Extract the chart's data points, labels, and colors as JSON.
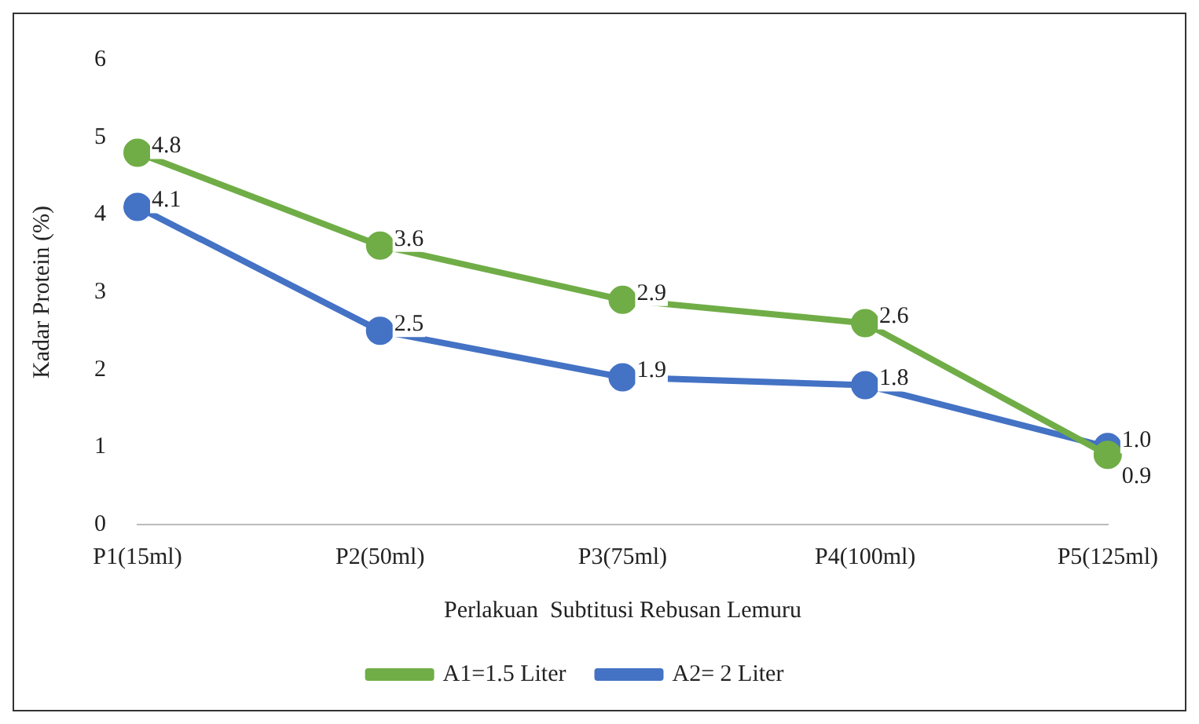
{
  "chart_data": {
    "type": "line",
    "xlabel": "Perlakuan  Subtitusi Rebusan Lemuru",
    "ylabel": "Kadar Protein (%)",
    "categories": [
      "P1(15ml)",
      "P2(50ml)",
      "P3(75ml)",
      "P4(100ml)",
      "P5(125ml)"
    ],
    "series": [
      {
        "name": "A1=1.5 Liter",
        "color": "#70ad47",
        "values": [
          4.8,
          3.6,
          2.9,
          2.6,
          0.9
        ],
        "value_labels": [
          "4.8",
          "3.6",
          "2.9",
          "2.6",
          "0.9"
        ]
      },
      {
        "name": "A2= 2 Liter",
        "color": "#4472c4",
        "values": [
          4.1,
          2.5,
          1.9,
          1.8,
          1.0
        ],
        "value_labels": [
          "4.1",
          "2.5",
          "1.9",
          "1.8",
          "1.0"
        ]
      }
    ],
    "ylim": [
      0,
      6
    ],
    "yticks": [
      0,
      1,
      2,
      3,
      4,
      5,
      6
    ],
    "grid": false,
    "legend": "bottom",
    "marker": "circle",
    "line_style": "solid"
  }
}
